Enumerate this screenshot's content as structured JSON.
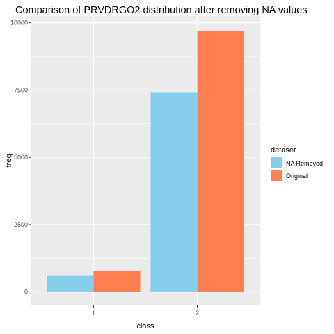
{
  "chart_data": {
    "type": "bar",
    "title": "Comparison of PRVDRGO2 distribution after removing NA values",
    "xlabel": "class",
    "ylabel": "freq",
    "categories": [
      "1",
      "2"
    ],
    "series": [
      {
        "name": "NA Removed",
        "values": [
          620,
          7420
        ],
        "color": "#87CEEB"
      },
      {
        "name": "Original",
        "values": [
          780,
          9700
        ],
        "color": "#FF7F50"
      }
    ],
    "ylim": [
      -500,
      10250
    ],
    "yticks": [
      0,
      2500,
      5000,
      7500,
      10000
    ],
    "ytick_labels": [
      "0",
      "2500",
      "5000",
      "7500",
      "10000"
    ],
    "grid": true,
    "legend": {
      "title": "dataset",
      "placement": "right"
    }
  }
}
